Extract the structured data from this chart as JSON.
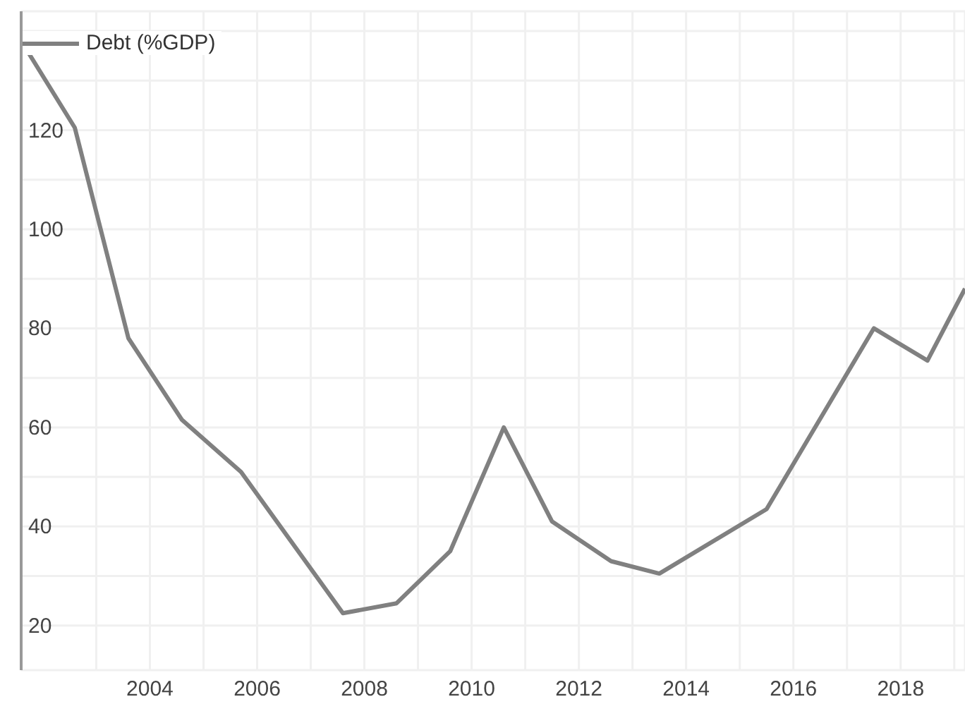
{
  "chart_data": {
    "type": "line",
    "x": [
      2001.6,
      2002.6,
      2003.6,
      2004.6,
      2005.7,
      2007.6,
      2008.6,
      2009.6,
      2010.6,
      2011.5,
      2012.6,
      2013.5,
      2015.5,
      2017.5,
      2018.5,
      2019.2
    ],
    "series": [
      {
        "name": "Debt (%GDP)",
        "color": "#808080",
        "values": [
          138,
          120.5,
          78,
          61.5,
          51,
          22.5,
          24.5,
          35,
          60,
          41,
          33,
          30.5,
          43.5,
          80,
          73.5,
          88
        ]
      }
    ],
    "xlim": [
      2001.6,
      2019.2
    ],
    "xticks": [
      {
        "value": 2003,
        "label": null
      },
      2004,
      {
        "value": 2005,
        "label": null
      },
      2006,
      {
        "value": 2007,
        "label": null
      },
      2008,
      {
        "value": 2009,
        "label": null
      },
      2010,
      {
        "value": 2011,
        "label": null
      },
      2012,
      {
        "value": 2013,
        "label": null
      },
      2014,
      {
        "value": 2015,
        "label": null
      },
      2016,
      {
        "value": 2017,
        "label": null
      },
      2018,
      {
        "value": 2019,
        "label": null
      }
    ],
    "ylim": [
      11,
      144
    ],
    "yticks": [
      20,
      {
        "value": 30,
        "label": null
      },
      40,
      {
        "value": 50,
        "label": null
      },
      60,
      {
        "value": 70,
        "label": null
      },
      80,
      {
        "value": 90,
        "label": null
      },
      100,
      {
        "value": 110,
        "label": null
      },
      120,
      {
        "value": 130,
        "label": null
      },
      {
        "value": 140,
        "label": null
      }
    ],
    "grid": true,
    "legend": "top left",
    "marker": "none",
    "line_style": "solid"
  }
}
